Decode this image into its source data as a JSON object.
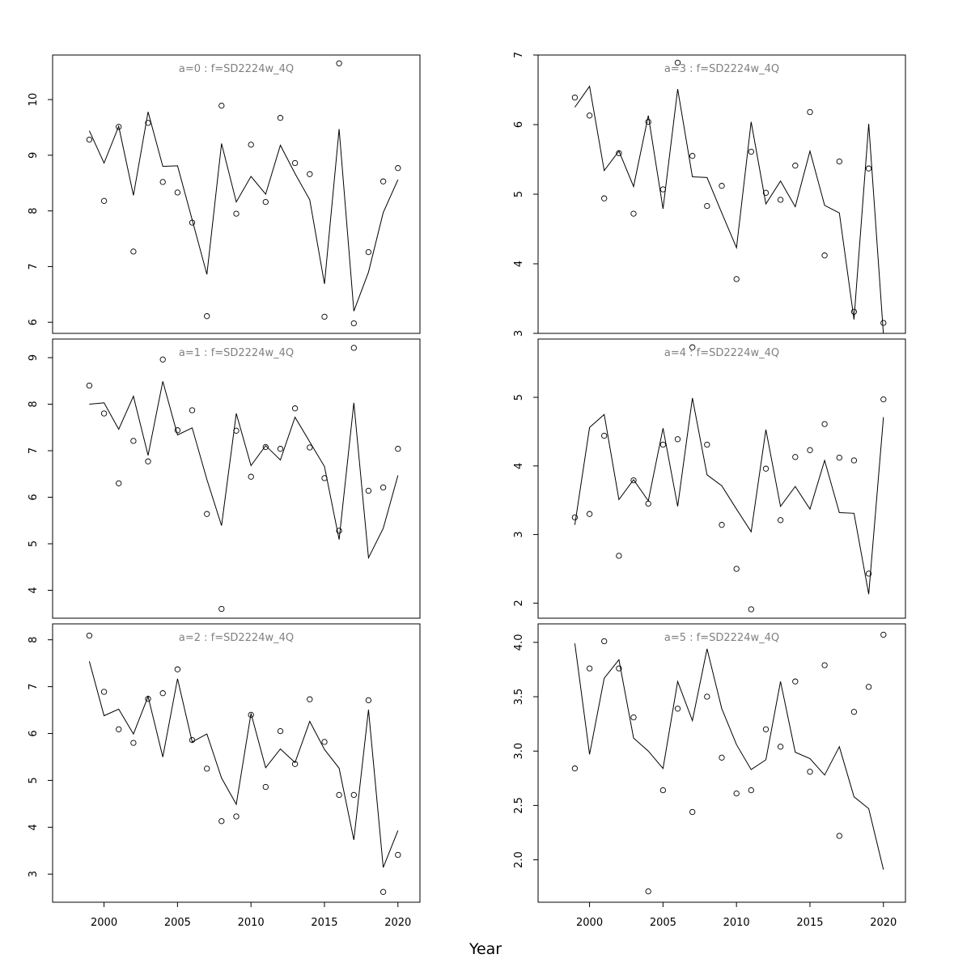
{
  "xlabel": "Year",
  "colors": {
    "line": "#000000",
    "points": "#000000",
    "title": "#808080",
    "background": "#ffffff"
  },
  "chart_data": [
    {
      "type": "line",
      "title": "a=0  :  f=SD2224w_4Q",
      "xlim": [
        1996.5,
        2021.5
      ],
      "ylim": [
        5.8,
        10.8
      ],
      "x_ticks": [
        2000,
        2005,
        2010,
        2015,
        2020
      ],
      "y_ticks": [
        6,
        7,
        8,
        9,
        10
      ],
      "y_tick_labels": [
        "6",
        "7",
        "8",
        "9",
        "10"
      ],
      "x": [
        1999,
        2000,
        2001,
        2002,
        2003,
        2004,
        2005,
        2006,
        2007,
        2008,
        2009,
        2010,
        2011,
        2012,
        2013,
        2014,
        2015,
        2016,
        2017,
        2018,
        2019,
        2020
      ],
      "series": [
        {
          "kind": "line",
          "values": [
            9.44,
            8.86,
            9.52,
            8.28,
            9.78,
            8.8,
            8.81,
            7.84,
            6.86,
            9.21,
            8.16,
            8.62,
            8.3,
            9.18,
            8.67,
            8.2,
            6.69,
            9.47,
            6.2,
            6.9,
            7.97,
            8.56
          ]
        },
        {
          "kind": "points",
          "values": [
            9.28,
            8.18,
            9.51,
            7.27,
            9.58,
            8.52,
            8.33,
            7.79,
            6.11,
            9.89,
            7.95,
            9.19,
            8.16,
            9.67,
            8.86,
            8.66,
            6.1,
            10.65,
            5.98,
            7.26,
            8.53,
            8.77
          ]
        }
      ]
    },
    {
      "type": "line",
      "title": "a=3  :  f=SD2224w_4Q",
      "xlim": [
        1996.5,
        2021.5
      ],
      "ylim": [
        3.0,
        7.0
      ],
      "x_ticks": [
        2000,
        2005,
        2010,
        2015,
        2020
      ],
      "y_ticks": [
        3,
        4,
        5,
        6,
        7
      ],
      "y_tick_labels": [
        "3",
        "4",
        "5",
        "6",
        "7"
      ],
      "x": [
        1999,
        2000,
        2001,
        2002,
        2003,
        2004,
        2005,
        2006,
        2007,
        2008,
        2009,
        2010,
        2011,
        2012,
        2013,
        2014,
        2015,
        2016,
        2017,
        2018,
        2019,
        2020
      ],
      "series": [
        {
          "kind": "line",
          "values": [
            6.25,
            6.55,
            5.34,
            5.62,
            5.11,
            6.13,
            4.79,
            6.51,
            5.25,
            5.24,
            4.73,
            4.23,
            6.04,
            4.86,
            5.19,
            4.82,
            5.62,
            4.84,
            4.73,
            3.2,
            6.01,
            2.98
          ]
        },
        {
          "kind": "points",
          "values": [
            6.39,
            6.13,
            4.94,
            5.59,
            4.72,
            6.04,
            5.07,
            6.89,
            5.55,
            4.83,
            5.12,
            3.78,
            5.61,
            5.02,
            4.92,
            5.41,
            6.18,
            4.12,
            5.47,
            3.31,
            5.37,
            3.15
          ]
        }
      ]
    },
    {
      "type": "line",
      "title": "a=1  :  f=SD2224w_4Q",
      "xlim": [
        1996.5,
        2021.5
      ],
      "ylim": [
        3.4,
        9.4
      ],
      "x_ticks": [
        2000,
        2005,
        2010,
        2015,
        2020
      ],
      "y_ticks": [
        4,
        5,
        6,
        7,
        8,
        9
      ],
      "y_tick_labels": [
        "4",
        "5",
        "6",
        "7",
        "8",
        "9"
      ],
      "x": [
        1999,
        2000,
        2001,
        2002,
        2003,
        2004,
        2005,
        2006,
        2007,
        2008,
        2009,
        2010,
        2011,
        2012,
        2013,
        2014,
        2015,
        2016,
        2017,
        2018,
        2019,
        2020
      ],
      "series": [
        {
          "kind": "line",
          "values": [
            8.0,
            8.03,
            7.46,
            8.17,
            6.9,
            8.49,
            7.34,
            7.49,
            6.38,
            5.39,
            7.8,
            6.68,
            7.11,
            6.8,
            7.72,
            7.19,
            6.66,
            5.09,
            8.03,
            4.7,
            5.33,
            6.47
          ]
        },
        {
          "kind": "points",
          "values": [
            8.4,
            7.8,
            6.3,
            7.21,
            6.77,
            8.96,
            7.44,
            7.87,
            5.64,
            3.6,
            7.43,
            6.44,
            7.08,
            7.04,
            7.91,
            7.07,
            6.41,
            5.28,
            9.21,
            6.14,
            6.21,
            7.04
          ]
        }
      ]
    },
    {
      "type": "line",
      "title": "a=4  :  f=SD2224w_4Q",
      "xlim": [
        1996.5,
        2021.5
      ],
      "ylim": [
        1.78,
        5.85
      ],
      "x_ticks": [
        2000,
        2005,
        2010,
        2015,
        2020
      ],
      "y_ticks": [
        2,
        3,
        4,
        5
      ],
      "y_tick_labels": [
        "2",
        "3",
        "4",
        "5"
      ],
      "x": [
        1999,
        2000,
        2001,
        2002,
        2003,
        2004,
        2005,
        2006,
        2007,
        2008,
        2009,
        2010,
        2011,
        2012,
        2013,
        2014,
        2015,
        2016,
        2017,
        2018,
        2019,
        2020
      ],
      "series": [
        {
          "kind": "line",
          "values": [
            3.14,
            4.56,
            4.75,
            3.51,
            3.8,
            3.49,
            4.55,
            3.41,
            4.99,
            3.87,
            3.71,
            3.37,
            3.04,
            4.53,
            3.41,
            3.7,
            3.37,
            4.08,
            3.32,
            3.31,
            2.13,
            4.71
          ]
        },
        {
          "kind": "points",
          "values": [
            3.25,
            3.3,
            4.44,
            2.69,
            3.79,
            3.45,
            4.31,
            4.39,
            5.73,
            4.31,
            3.14,
            2.5,
            1.91,
            3.96,
            3.21,
            4.13,
            4.23,
            4.61,
            4.12,
            4.08,
            2.43,
            4.97
          ]
        }
      ]
    },
    {
      "type": "line",
      "title": "a=2  :  f=SD2224w_4Q",
      "xlim": [
        1996.5,
        2021.5
      ],
      "ylim": [
        2.4,
        8.34
      ],
      "x_ticks": [
        2000,
        2005,
        2010,
        2015,
        2020
      ],
      "y_ticks": [
        3,
        4,
        5,
        6,
        7,
        8
      ],
      "y_tick_labels": [
        "3",
        "4",
        "5",
        "6",
        "7",
        "8"
      ],
      "x": [
        1999,
        2000,
        2001,
        2002,
        2003,
        2004,
        2005,
        2006,
        2007,
        2008,
        2009,
        2010,
        2011,
        2012,
        2013,
        2014,
        2015,
        2016,
        2017,
        2018,
        2019,
        2020
      ],
      "series": [
        {
          "kind": "line",
          "values": [
            7.54,
            6.38,
            6.52,
            5.99,
            6.79,
            5.5,
            7.17,
            5.82,
            5.99,
            5.05,
            4.49,
            6.43,
            5.27,
            5.67,
            5.38,
            6.26,
            5.66,
            5.26,
            3.73,
            6.51,
            3.14,
            3.93
          ]
        },
        {
          "kind": "points",
          "values": [
            8.09,
            6.89,
            6.09,
            5.8,
            6.74,
            6.86,
            7.37,
            5.86,
            5.25,
            4.13,
            4.23,
            6.4,
            4.86,
            6.05,
            5.35,
            6.73,
            5.82,
            4.69,
            4.69,
            6.71,
            2.62,
            3.41
          ]
        }
      ]
    },
    {
      "type": "line",
      "title": "a=5  :  f=SD2224w_4Q",
      "xlim": [
        1996.5,
        2021.5
      ],
      "ylim": [
        1.61,
        4.17
      ],
      "x_ticks": [
        2000,
        2005,
        2010,
        2015,
        2020
      ],
      "y_ticks": [
        2.0,
        2.5,
        3.0,
        3.5,
        4.0
      ],
      "y_tick_labels": [
        "2.0",
        "2.5",
        "3.0",
        "3.5",
        "4.0"
      ],
      "x": [
        1999,
        2000,
        2001,
        2002,
        2003,
        2004,
        2005,
        2006,
        2007,
        2008,
        2009,
        2010,
        2011,
        2012,
        2013,
        2014,
        2015,
        2016,
        2017,
        2018,
        2019,
        2020
      ],
      "series": [
        {
          "kind": "line",
          "values": [
            3.99,
            2.97,
            3.67,
            3.84,
            3.12,
            3.0,
            2.84,
            3.64,
            3.28,
            3.94,
            3.39,
            3.06,
            2.83,
            2.92,
            3.64,
            2.99,
            2.93,
            2.78,
            3.04,
            2.58,
            2.47,
            1.91
          ]
        },
        {
          "kind": "points",
          "values": [
            2.84,
            3.76,
            4.01,
            3.76,
            3.31,
            1.71,
            2.64,
            3.39,
            2.44,
            3.5,
            2.94,
            2.61,
            2.64,
            3.2,
            3.04,
            3.64,
            2.81,
            3.79,
            2.22,
            3.36,
            3.59,
            4.07
          ]
        }
      ]
    }
  ]
}
